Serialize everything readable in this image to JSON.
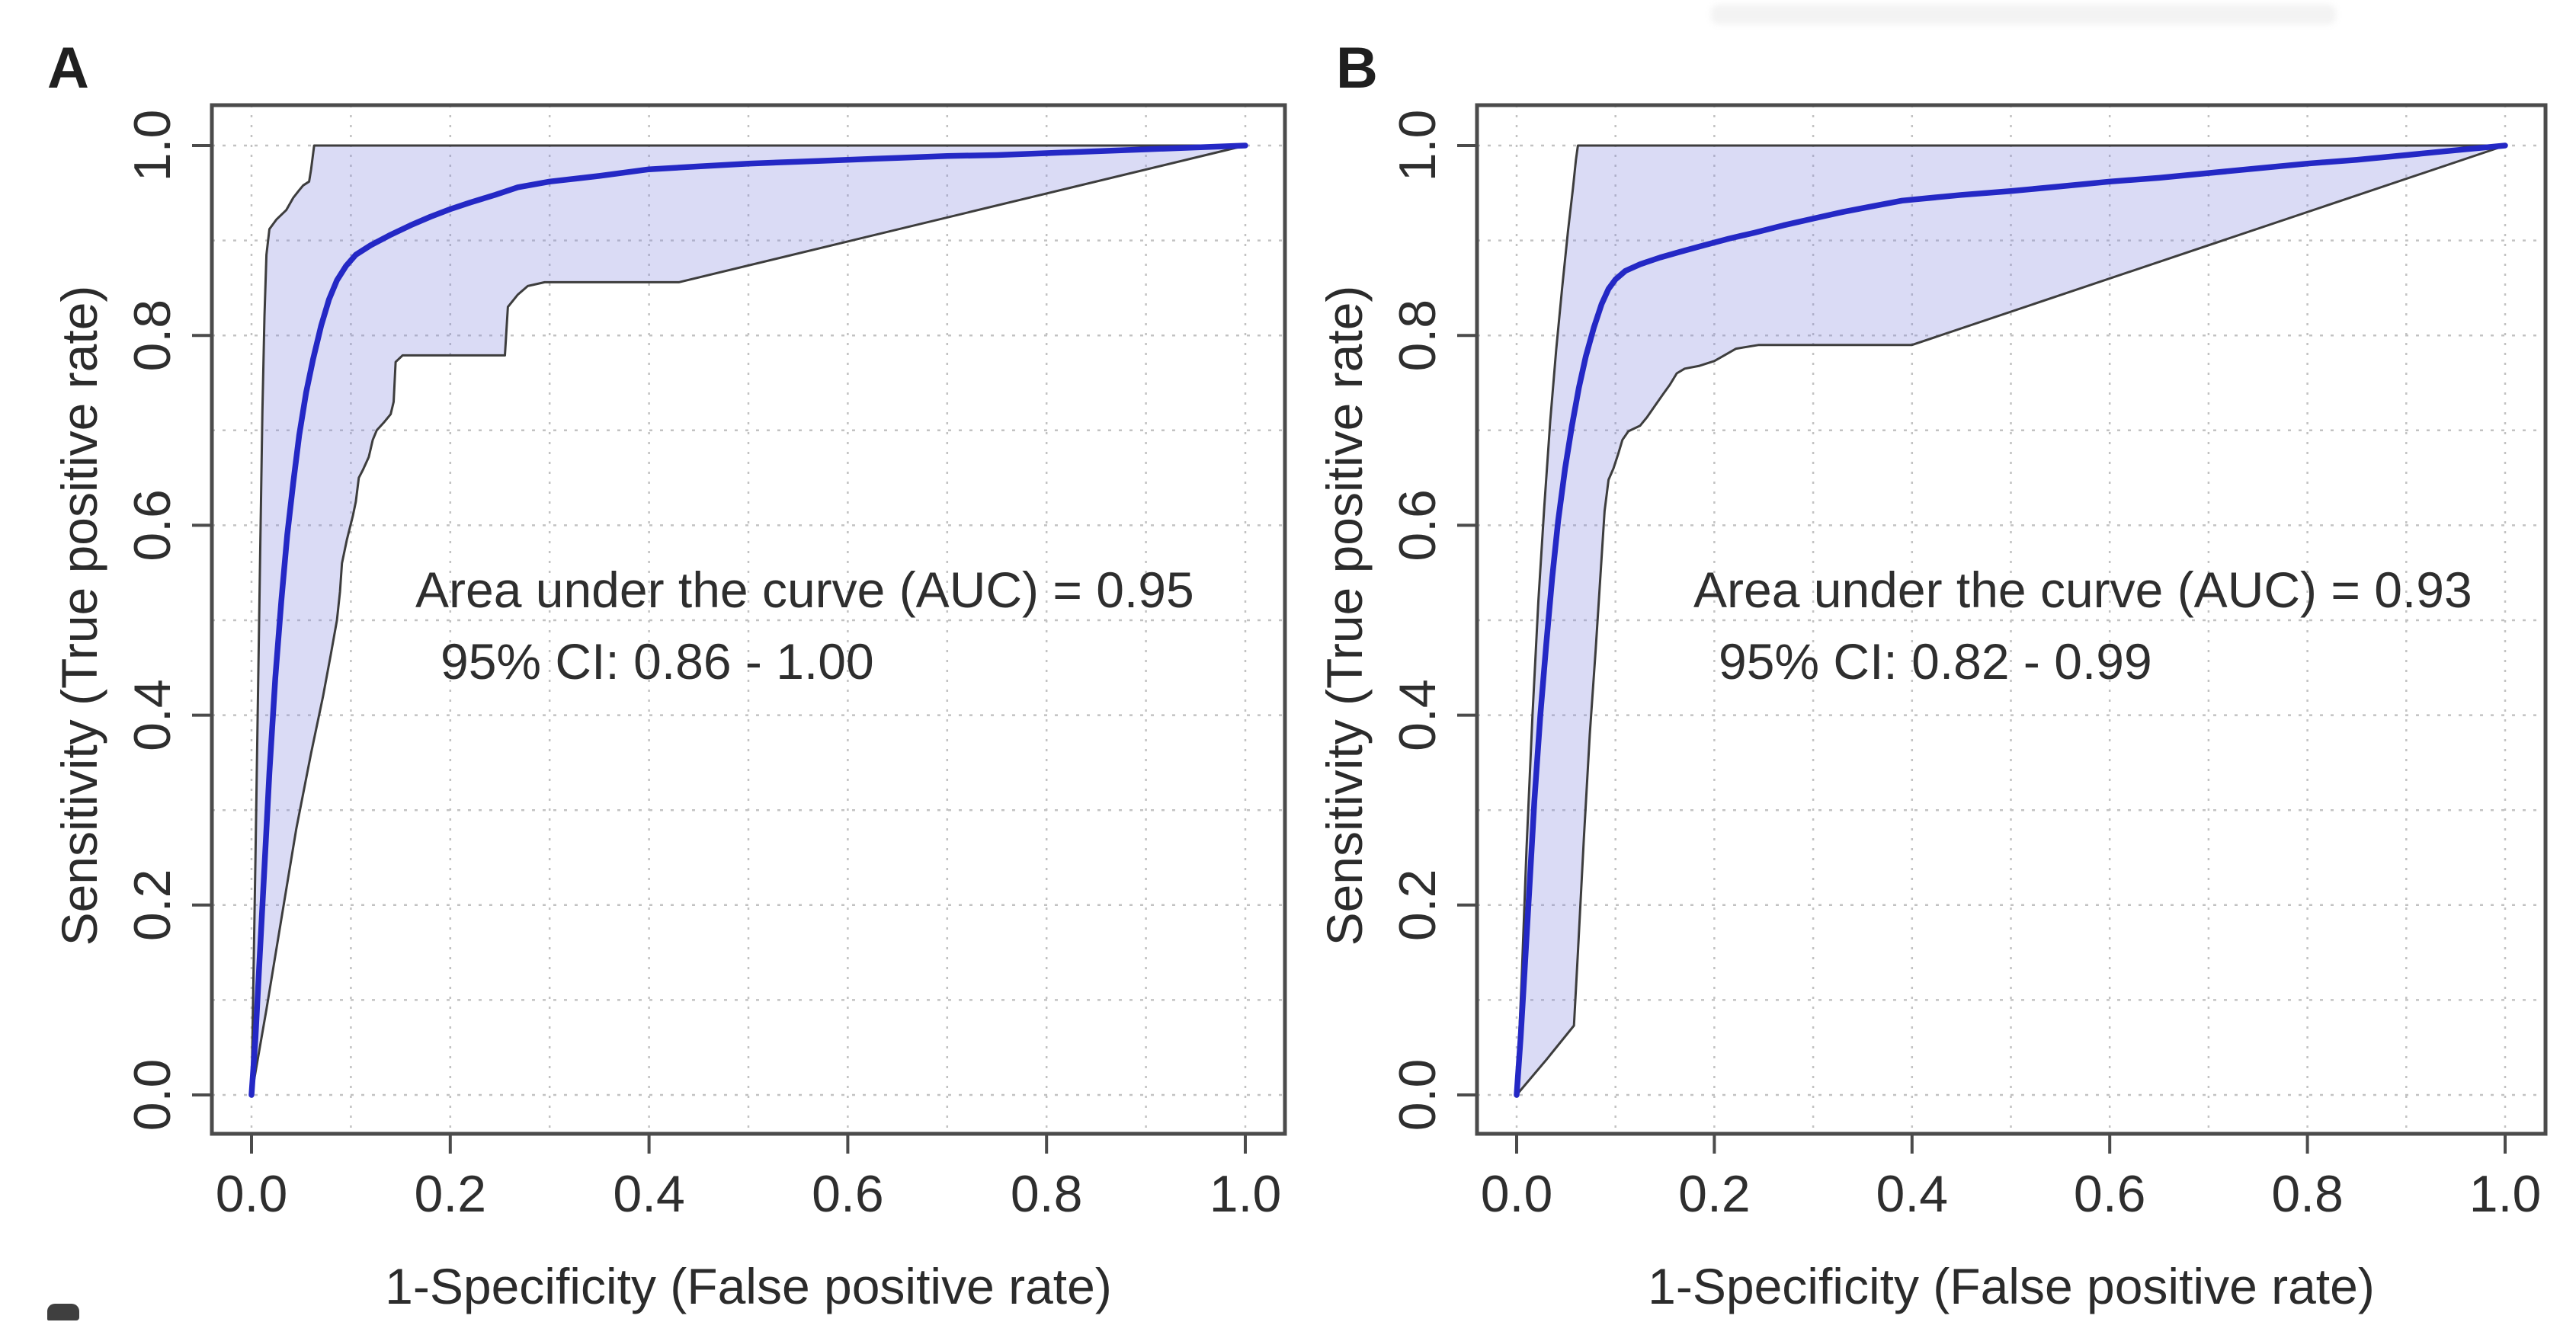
{
  "figure_title": "",
  "colors": {
    "roc_curve": "#2428c5",
    "ci_band_fill": "rgba(132,136,221,0.30)",
    "ci_band_edge": "#3d3d3d",
    "frame": "#4b4b4b",
    "grid": "#c2c2c2",
    "text": "#2e2e2e"
  },
  "chart_data": [
    {
      "type": "line",
      "panel_label": "A",
      "xlabel": "1-Specificity (False positive rate)",
      "ylabel": "Sensitivity (True positive rate)",
      "annotation_line1": "Area under the curve (AUC) = 0.95",
      "annotation_line2": "95% CI: 0.86 - 1.00",
      "auc": 0.95,
      "ci_low": 0.86,
      "ci_high": 1.0,
      "xlim": [
        0,
        1
      ],
      "ylim": [
        0,
        1
      ],
      "grid": "dotted, 0.1 steps both axes",
      "legend": "none",
      "x_tick_labels": [
        "0.0",
        "0.2",
        "0.4",
        "0.6",
        "0.8",
        "1.0"
      ],
      "y_tick_labels": [
        "0.0",
        "0.2",
        "0.4",
        "0.6",
        "0.8",
        "1.0"
      ],
      "series": [
        {
          "name": "ROC curve",
          "points": [
            [
              0,
              0
            ],
            [
              0.004,
              0.06
            ],
            [
              0.008,
              0.14
            ],
            [
              0.013,
              0.24
            ],
            [
              0.018,
              0.34
            ],
            [
              0.024,
              0.44
            ],
            [
              0.03,
              0.52
            ],
            [
              0.036,
              0.59
            ],
            [
              0.042,
              0.645
            ],
            [
              0.048,
              0.695
            ],
            [
              0.055,
              0.74
            ],
            [
              0.062,
              0.775
            ],
            [
              0.07,
              0.81
            ],
            [
              0.078,
              0.838
            ],
            [
              0.086,
              0.858
            ],
            [
              0.095,
              0.873
            ],
            [
              0.105,
              0.885
            ],
            [
              0.12,
              0.895
            ],
            [
              0.14,
              0.906
            ],
            [
              0.16,
              0.916
            ],
            [
              0.18,
              0.925
            ],
            [
              0.2,
              0.933
            ],
            [
              0.22,
              0.94
            ],
            [
              0.245,
              0.948
            ],
            [
              0.268,
              0.956
            ],
            [
              0.3,
              0.962
            ],
            [
              0.35,
              0.968
            ],
            [
              0.4,
              0.975
            ],
            [
              0.45,
              0.978
            ],
            [
              0.5,
              0.981
            ],
            [
              0.55,
              0.983
            ],
            [
              0.6,
              0.985
            ],
            [
              0.65,
              0.987
            ],
            [
              0.7,
              0.989
            ],
            [
              0.75,
              0.99
            ],
            [
              0.8,
              0.992
            ],
            [
              0.85,
              0.994
            ],
            [
              0.9,
              0.996
            ],
            [
              0.95,
              0.998
            ],
            [
              1,
              1
            ]
          ]
        },
        {
          "name": "95% CI upper bound",
          "points": [
            [
              0,
              0
            ],
            [
              0.004,
              0.25
            ],
            [
              0.008,
              0.52
            ],
            [
              0.011,
              0.72
            ],
            [
              0.013,
              0.82
            ],
            [
              0.015,
              0.885
            ],
            [
              0.018,
              0.912
            ],
            [
              0.025,
              0.922
            ],
            [
              0.035,
              0.932
            ],
            [
              0.042,
              0.945
            ],
            [
              0.048,
              0.953
            ],
            [
              0.052,
              0.958
            ],
            [
              0.058,
              0.962
            ],
            [
              0.06,
              0.975
            ],
            [
              0.063,
              1.0
            ],
            [
              1,
              1
            ]
          ]
        },
        {
          "name": "95% CI lower bound",
          "points": [
            [
              0,
              0
            ],
            [
              0.015,
              0.09
            ],
            [
              0.03,
              0.185
            ],
            [
              0.045,
              0.28
            ],
            [
              0.06,
              0.36
            ],
            [
              0.072,
              0.42
            ],
            [
              0.08,
              0.465
            ],
            [
              0.086,
              0.5
            ],
            [
              0.089,
              0.53
            ],
            [
              0.091,
              0.56
            ],
            [
              0.096,
              0.585
            ],
            [
              0.102,
              0.61
            ],
            [
              0.105,
              0.625
            ],
            [
              0.108,
              0.65
            ],
            [
              0.112,
              0.658
            ],
            [
              0.118,
              0.672
            ],
            [
              0.122,
              0.69
            ],
            [
              0.126,
              0.7
            ],
            [
              0.133,
              0.708
            ],
            [
              0.14,
              0.717
            ],
            [
              0.143,
              0.73
            ],
            [
              0.145,
              0.772
            ],
            [
              0.152,
              0.779
            ],
            [
              0.255,
              0.779
            ],
            [
              0.258,
              0.83
            ],
            [
              0.268,
              0.843
            ],
            [
              0.278,
              0.852
            ],
            [
              0.295,
              0.856
            ],
            [
              0.43,
              0.856
            ],
            [
              1,
              1
            ]
          ]
        }
      ]
    },
    {
      "type": "line",
      "panel_label": "B",
      "xlabel": "1-Specificity (False positive rate)",
      "ylabel": "Sensitivity (True positive rate)",
      "annotation_line1": "Area under the curve (AUC) = 0.93",
      "annotation_line2": "95% CI: 0.82 - 0.99",
      "auc": 0.93,
      "ci_low": 0.82,
      "ci_high": 0.99,
      "xlim": [
        0,
        1
      ],
      "ylim": [
        0,
        1
      ],
      "grid": "dotted, 0.1 steps both axes",
      "legend": "none",
      "x_tick_labels": [
        "0.0",
        "0.2",
        "0.4",
        "0.6",
        "0.8",
        "1.0"
      ],
      "y_tick_labels": [
        "0.0",
        "0.2",
        "0.4",
        "0.6",
        "0.8",
        "1.0"
      ],
      "series": [
        {
          "name": "ROC curve",
          "points": [
            [
              0,
              0
            ],
            [
              0.004,
              0.06
            ],
            [
              0.008,
              0.13
            ],
            [
              0.013,
              0.22
            ],
            [
              0.018,
              0.31
            ],
            [
              0.024,
              0.4
            ],
            [
              0.03,
              0.475
            ],
            [
              0.036,
              0.545
            ],
            [
              0.042,
              0.605
            ],
            [
              0.049,
              0.66
            ],
            [
              0.056,
              0.705
            ],
            [
              0.063,
              0.745
            ],
            [
              0.07,
              0.778
            ],
            [
              0.078,
              0.808
            ],
            [
              0.086,
              0.833
            ],
            [
              0.093,
              0.849
            ],
            [
              0.1,
              0.859
            ],
            [
              0.11,
              0.868
            ],
            [
              0.125,
              0.875
            ],
            [
              0.145,
              0.882
            ],
            [
              0.165,
              0.888
            ],
            [
              0.19,
              0.895
            ],
            [
              0.215,
              0.902
            ],
            [
              0.24,
              0.908
            ],
            [
              0.27,
              0.916
            ],
            [
              0.3,
              0.923
            ],
            [
              0.33,
              0.93
            ],
            [
              0.36,
              0.936
            ],
            [
              0.39,
              0.942
            ],
            [
              0.45,
              0.948
            ],
            [
              0.5,
              0.952
            ],
            [
              0.55,
              0.957
            ],
            [
              0.6,
              0.962
            ],
            [
              0.65,
              0.966
            ],
            [
              0.7,
              0.971
            ],
            [
              0.75,
              0.976
            ],
            [
              0.8,
              0.981
            ],
            [
              0.85,
              0.985
            ],
            [
              0.9,
              0.99
            ],
            [
              0.95,
              0.995
            ],
            [
              1,
              1
            ]
          ]
        },
        {
          "name": "95% CI upper bound",
          "points": [
            [
              0,
              0
            ],
            [
              0.005,
              0.12
            ],
            [
              0.01,
              0.26
            ],
            [
              0.016,
              0.4
            ],
            [
              0.022,
              0.52
            ],
            [
              0.028,
              0.62
            ],
            [
              0.034,
              0.71
            ],
            [
              0.04,
              0.785
            ],
            [
              0.046,
              0.85
            ],
            [
              0.052,
              0.91
            ],
            [
              0.057,
              0.955
            ],
            [
              0.06,
              0.985
            ],
            [
              0.062,
              1.0
            ],
            [
              1,
              1
            ]
          ]
        },
        {
          "name": "95% CI lower bound",
          "points": [
            [
              0,
              0
            ],
            [
              0.03,
              0.037
            ],
            [
              0.058,
              0.073
            ],
            [
              0.062,
              0.15
            ],
            [
              0.068,
              0.27
            ],
            [
              0.074,
              0.38
            ],
            [
              0.08,
              0.47
            ],
            [
              0.085,
              0.55
            ],
            [
              0.089,
              0.615
            ],
            [
              0.093,
              0.648
            ],
            [
              0.098,
              0.66
            ],
            [
              0.103,
              0.676
            ],
            [
              0.107,
              0.69
            ],
            [
              0.113,
              0.699
            ],
            [
              0.125,
              0.705
            ],
            [
              0.132,
              0.714
            ],
            [
              0.14,
              0.726
            ],
            [
              0.148,
              0.738
            ],
            [
              0.155,
              0.748
            ],
            [
              0.162,
              0.76
            ],
            [
              0.17,
              0.765
            ],
            [
              0.185,
              0.768
            ],
            [
              0.2,
              0.773
            ],
            [
              0.21,
              0.779
            ],
            [
              0.222,
              0.786
            ],
            [
              0.245,
              0.79
            ],
            [
              0.4,
              0.79
            ],
            [
              1,
              1
            ]
          ]
        }
      ]
    }
  ]
}
